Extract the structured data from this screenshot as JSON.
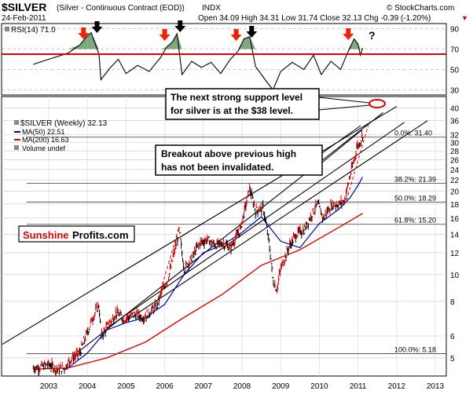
{
  "header": {
    "symbol": "$SILVER",
    "description": "(Silver - Continuous Contract (EOD))",
    "exchange": "INDX",
    "brand": "© StockCharts.com",
    "date": "24-Feb-2011",
    "ohlc": "Open 34.09  High 34.31  Low 31.74  Close 32.13  Chg -0.39 (-1.20%)",
    "chg_arrow": "▼"
  },
  "rsi_panel": {
    "label": "RSI(14) 71.0",
    "ticks": [
      "90",
      "70",
      "50",
      "30"
    ],
    "question_mark": "?"
  },
  "legend": {
    "title": "$SILVER (Weekly) 32.13",
    "ma50": "MA(50) 22.51",
    "ma200": "MA(200) 16.63",
    "volume": "Volume undef"
  },
  "annotations": {
    "support_line1": "The next strong support level",
    "support_line2": "for silver is at the $38 level.",
    "breakout_line1": "Breakout above previous high",
    "breakout_line2": "has not been invalidated."
  },
  "logo": {
    "part1": "Sunshine",
    "part2": "Profits.com"
  },
  "colors": {
    "price": "#000000",
    "up_bar": "#cc0000",
    "ma50": "#0000aa",
    "ma200": "#dd0000",
    "rsi_fill": "#669966",
    "red_arrow": "#ee2200",
    "support_red": "#dd0000"
  },
  "chart_data": {
    "type": "ohlc",
    "y_scale": "log",
    "x_ticks": [
      "2003",
      "2004",
      "2005",
      "2006",
      "2007",
      "2008",
      "2009",
      "2010",
      "2011",
      "2012",
      "2013"
    ],
    "y_ticks": [
      "40",
      "36",
      "32",
      "30",
      "28",
      "26",
      "24",
      "22",
      "20",
      "18",
      "16",
      "14",
      "12",
      "10",
      "8",
      "6",
      "5"
    ],
    "ylim": [
      4.3,
      44
    ],
    "fib_levels": [
      {
        "label": "0.0%: 31.40",
        "value": 31.4
      },
      {
        "label": "38.2%: 21.39",
        "value": 21.39
      },
      {
        "label": "50.0%: 18.29",
        "value": 18.29
      },
      {
        "label": "61.8%: 15.20",
        "value": 15.2
      },
      {
        "label": "100.0%: 5.18",
        "value": 5.18
      }
    ],
    "price_series": [
      [
        2002.6,
        4.6
      ],
      [
        2002.8,
        4.65
      ],
      [
        2003.0,
        4.75
      ],
      [
        2003.2,
        4.55
      ],
      [
        2003.4,
        4.6
      ],
      [
        2003.6,
        5.0
      ],
      [
        2003.8,
        5.2
      ],
      [
        2004.0,
        6.2
      ],
      [
        2004.1,
        6.8
      ],
      [
        2004.3,
        7.8
      ],
      [
        2004.35,
        6.0
      ],
      [
        2004.55,
        6.6
      ],
      [
        2004.75,
        7.3
      ],
      [
        2004.95,
        6.9
      ],
      [
        2005.2,
        7.2
      ],
      [
        2005.45,
        7.0
      ],
      [
        2005.75,
        7.6
      ],
      [
        2005.95,
        8.8
      ],
      [
        2006.1,
        9.8
      ],
      [
        2006.3,
        13.0
      ],
      [
        2006.37,
        14.5
      ],
      [
        2006.5,
        10.5
      ],
      [
        2006.7,
        11.5
      ],
      [
        2006.9,
        13.0
      ],
      [
        2007.1,
        13.4
      ],
      [
        2007.3,
        12.8
      ],
      [
        2007.5,
        13.0
      ],
      [
        2007.7,
        12.5
      ],
      [
        2007.95,
        14.5
      ],
      [
        2008.1,
        18.0
      ],
      [
        2008.2,
        20.5
      ],
      [
        2008.35,
        17.0
      ],
      [
        2008.55,
        17.5
      ],
      [
        2008.7,
        13.0
      ],
      [
        2008.8,
        9.5
      ],
      [
        2008.9,
        8.8
      ],
      [
        2009.0,
        10.5
      ],
      [
        2009.2,
        12.5
      ],
      [
        2009.4,
        14.0
      ],
      [
        2009.6,
        14.5
      ],
      [
        2009.8,
        16.5
      ],
      [
        2009.95,
        18.0
      ],
      [
        2010.1,
        16.0
      ],
      [
        2010.3,
        17.8
      ],
      [
        2010.5,
        18.0
      ],
      [
        2010.65,
        18.5
      ],
      [
        2010.8,
        23.0
      ],
      [
        2010.9,
        26.0
      ],
      [
        2010.97,
        29.0
      ],
      [
        2011.05,
        30.0
      ],
      [
        2011.12,
        32.13
      ]
    ],
    "ma50": [
      [
        2003.5,
        4.6
      ],
      [
        2004.0,
        5.2
      ],
      [
        2004.5,
        6.3
      ],
      [
        2005.0,
        6.7
      ],
      [
        2005.5,
        7.0
      ],
      [
        2006.0,
        7.8
      ],
      [
        2006.5,
        10.0
      ],
      [
        2007.0,
        12.0
      ],
      [
        2007.5,
        12.8
      ],
      [
        2008.0,
        14.2
      ],
      [
        2008.5,
        16.2
      ],
      [
        2009.0,
        13.2
      ],
      [
        2009.5,
        12.5
      ],
      [
        2010.0,
        15.3
      ],
      [
        2010.5,
        17.2
      ],
      [
        2010.8,
        19.0
      ],
      [
        2011.0,
        21.0
      ],
      [
        2011.12,
        22.51
      ]
    ],
    "ma200": [
      [
        2002.6,
        4.55
      ],
      [
        2003.5,
        4.6
      ],
      [
        2004.5,
        5.0
      ],
      [
        2005.5,
        5.7
      ],
      [
        2006.5,
        7.0
      ],
      [
        2007.5,
        8.5
      ],
      [
        2008.5,
        10.8
      ],
      [
        2009.5,
        12.3
      ],
      [
        2010.5,
        14.8
      ],
      [
        2011.12,
        16.63
      ]
    ],
    "rsi": [
      [
        2002.6,
        55
      ],
      [
        2003.0,
        60
      ],
      [
        2003.5,
        66
      ],
      [
        2003.8,
        74
      ],
      [
        2004.0,
        83
      ],
      [
        2004.1,
        86
      ],
      [
        2004.3,
        65
      ],
      [
        2004.35,
        40
      ],
      [
        2004.6,
        52
      ],
      [
        2004.8,
        60
      ],
      [
        2005.0,
        46
      ],
      [
        2005.3,
        54
      ],
      [
        2005.6,
        48
      ],
      [
        2005.9,
        62
      ],
      [
        2006.05,
        72
      ],
      [
        2006.2,
        77
      ],
      [
        2006.32,
        85
      ],
      [
        2006.45,
        45
      ],
      [
        2006.7,
        58
      ],
      [
        2006.95,
        52
      ],
      [
        2007.2,
        57
      ],
      [
        2007.45,
        46
      ],
      [
        2007.7,
        60
      ],
      [
        2007.9,
        68
      ],
      [
        2008.05,
        80
      ],
      [
        2008.2,
        82
      ],
      [
        2008.35,
        53
      ],
      [
        2008.6,
        40
      ],
      [
        2008.8,
        30
      ],
      [
        2009.0,
        48
      ],
      [
        2009.3,
        57
      ],
      [
        2009.6,
        50
      ],
      [
        2009.85,
        64
      ],
      [
        2010.05,
        45
      ],
      [
        2010.3,
        58
      ],
      [
        2010.55,
        50
      ],
      [
        2010.75,
        68
      ],
      [
        2010.9,
        80
      ],
      [
        2011.0,
        75
      ],
      [
        2011.06,
        64
      ],
      [
        2011.12,
        71
      ]
    ],
    "rsi_ylim": [
      25,
      95
    ]
  }
}
